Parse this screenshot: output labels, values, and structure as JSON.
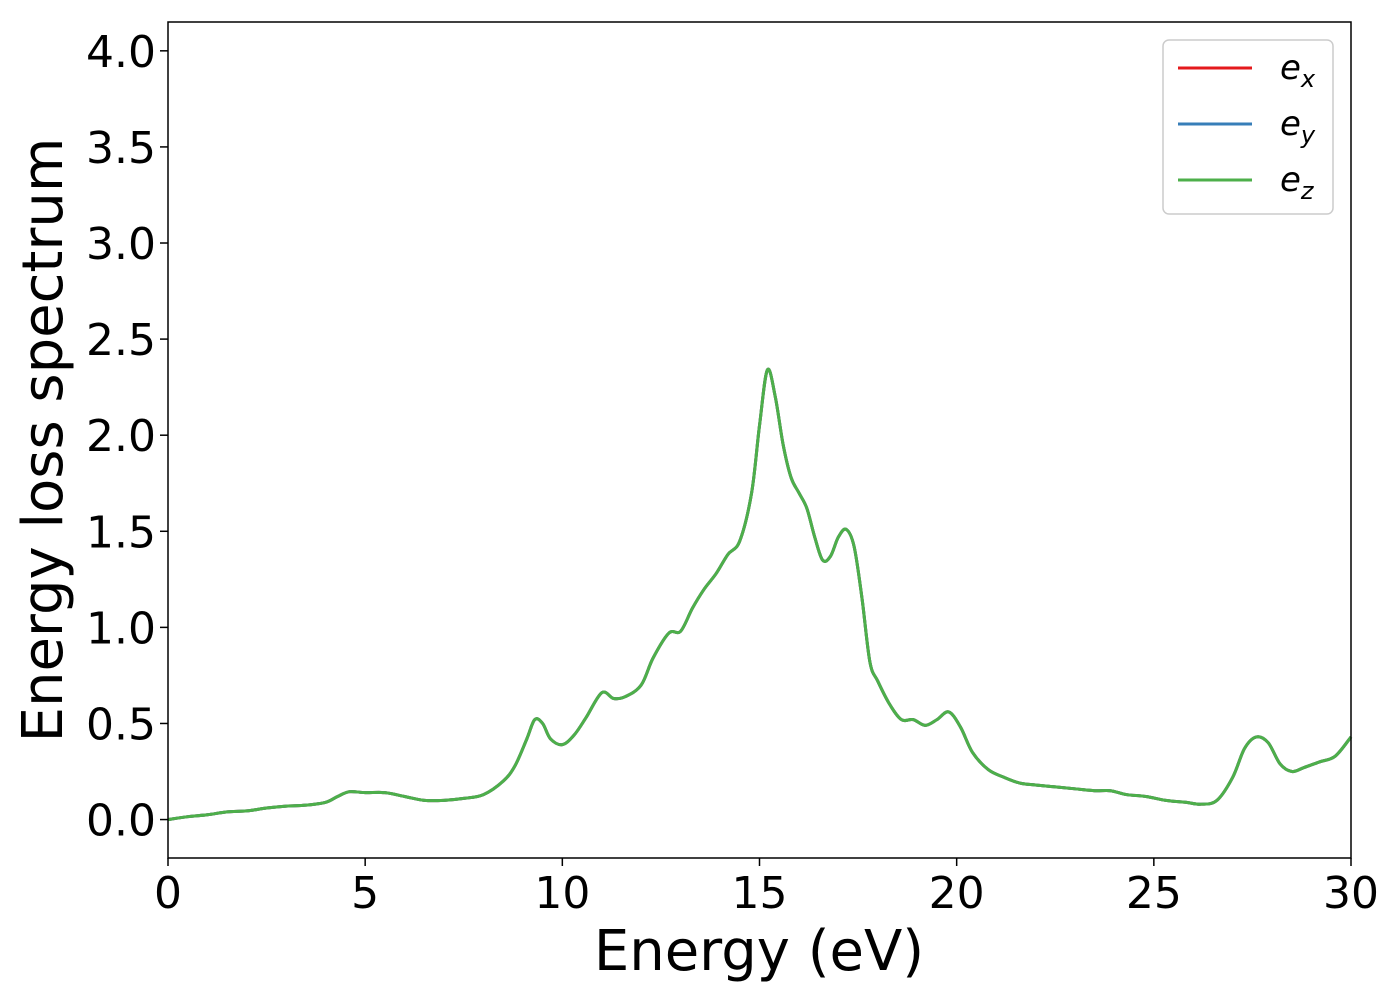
{
  "chart_data": {
    "type": "line",
    "title": "",
    "xlabel": "Energy (eV)",
    "ylabel": "Energy loss spectrum",
    "xlim": [
      0,
      30
    ],
    "ylim": [
      -0.2,
      4.15
    ],
    "xticks": [
      0,
      5,
      10,
      15,
      20,
      25,
      30
    ],
    "xtick_labels": [
      "0",
      "5",
      "10",
      "15",
      "20",
      "25",
      "30"
    ],
    "yticks": [
      0.0,
      0.5,
      1.0,
      1.5,
      2.0,
      2.5,
      3.0,
      3.5,
      4.0
    ],
    "ytick_labels": [
      "0.0",
      "0.5",
      "1.0",
      "1.5",
      "2.0",
      "2.5",
      "3.0",
      "3.5",
      "4.0"
    ],
    "grid": false,
    "legend_position": "top-right",
    "x": [
      0,
      0.5,
      1.0,
      1.5,
      2.0,
      2.5,
      3.0,
      3.5,
      4.0,
      4.3,
      4.6,
      5.0,
      5.5,
      6.0,
      6.5,
      7.0,
      7.5,
      8.0,
      8.5,
      8.8,
      9.1,
      9.3,
      9.5,
      9.7,
      10.0,
      10.3,
      10.6,
      11.0,
      11.3,
      11.6,
      12.0,
      12.3,
      12.7,
      13.0,
      13.3,
      13.6,
      13.9,
      14.2,
      14.5,
      14.8,
      15.0,
      15.2,
      15.4,
      15.6,
      15.8,
      16.0,
      16.2,
      16.4,
      16.6,
      16.8,
      17.0,
      17.2,
      17.4,
      17.6,
      17.8,
      18.0,
      18.3,
      18.6,
      18.9,
      19.2,
      19.5,
      19.8,
      20.1,
      20.4,
      20.8,
      21.2,
      21.6,
      22.0,
      22.5,
      23.0,
      23.5,
      23.9,
      24.3,
      24.8,
      25.3,
      25.8,
      26.2,
      26.6,
      27.0,
      27.3,
      27.6,
      27.9,
      28.2,
      28.5,
      28.8,
      29.2,
      29.6,
      30.0
    ],
    "series": [
      {
        "name": "e_x",
        "color": "#e41a1c",
        "values": [
          0.0,
          0.015,
          0.025,
          0.04,
          0.045,
          0.06,
          0.07,
          0.075,
          0.09,
          0.12,
          0.145,
          0.14,
          0.14,
          0.12,
          0.1,
          0.1,
          0.11,
          0.13,
          0.2,
          0.28,
          0.42,
          0.52,
          0.5,
          0.42,
          0.39,
          0.44,
          0.53,
          0.66,
          0.63,
          0.64,
          0.7,
          0.84,
          0.97,
          0.98,
          1.1,
          1.2,
          1.28,
          1.38,
          1.45,
          1.7,
          2.05,
          2.34,
          2.2,
          1.95,
          1.78,
          1.7,
          1.62,
          1.47,
          1.35,
          1.37,
          1.47,
          1.51,
          1.42,
          1.15,
          0.82,
          0.72,
          0.6,
          0.52,
          0.52,
          0.49,
          0.52,
          0.56,
          0.48,
          0.35,
          0.26,
          0.22,
          0.19,
          0.18,
          0.17,
          0.16,
          0.15,
          0.15,
          0.13,
          0.12,
          0.1,
          0.09,
          0.08,
          0.1,
          0.22,
          0.37,
          0.43,
          0.4,
          0.29,
          0.25,
          0.27,
          0.3,
          0.33,
          0.43
        ]
      },
      {
        "name": "e_y",
        "color": "#377eb8",
        "values": [
          0.0,
          0.015,
          0.025,
          0.04,
          0.045,
          0.06,
          0.07,
          0.075,
          0.09,
          0.12,
          0.145,
          0.14,
          0.14,
          0.12,
          0.1,
          0.1,
          0.11,
          0.13,
          0.2,
          0.28,
          0.42,
          0.52,
          0.5,
          0.42,
          0.39,
          0.44,
          0.53,
          0.66,
          0.63,
          0.64,
          0.7,
          0.84,
          0.97,
          0.98,
          1.1,
          1.2,
          1.28,
          1.38,
          1.45,
          1.7,
          2.05,
          2.34,
          2.2,
          1.95,
          1.78,
          1.7,
          1.62,
          1.47,
          1.35,
          1.37,
          1.47,
          1.51,
          1.42,
          1.15,
          0.82,
          0.72,
          0.6,
          0.52,
          0.52,
          0.49,
          0.52,
          0.56,
          0.48,
          0.35,
          0.26,
          0.22,
          0.19,
          0.18,
          0.17,
          0.16,
          0.15,
          0.15,
          0.13,
          0.12,
          0.1,
          0.09,
          0.08,
          0.1,
          0.22,
          0.37,
          0.43,
          0.4,
          0.29,
          0.25,
          0.27,
          0.3,
          0.33,
          0.43
        ]
      },
      {
        "name": "e_z",
        "color": "#4daf4a",
        "values": [
          0.0,
          0.015,
          0.025,
          0.04,
          0.045,
          0.06,
          0.07,
          0.075,
          0.09,
          0.12,
          0.145,
          0.14,
          0.14,
          0.12,
          0.1,
          0.1,
          0.11,
          0.13,
          0.2,
          0.28,
          0.42,
          0.52,
          0.5,
          0.42,
          0.39,
          0.44,
          0.53,
          0.66,
          0.63,
          0.64,
          0.7,
          0.84,
          0.97,
          0.98,
          1.1,
          1.2,
          1.28,
          1.38,
          1.45,
          1.7,
          2.05,
          2.34,
          2.2,
          1.95,
          1.78,
          1.7,
          1.62,
          1.47,
          1.35,
          1.37,
          1.47,
          1.51,
          1.42,
          1.15,
          0.82,
          0.72,
          0.6,
          0.52,
          0.52,
          0.49,
          0.52,
          0.56,
          0.48,
          0.35,
          0.26,
          0.22,
          0.19,
          0.18,
          0.17,
          0.16,
          0.15,
          0.15,
          0.13,
          0.12,
          0.1,
          0.09,
          0.08,
          0.1,
          0.22,
          0.37,
          0.43,
          0.4,
          0.29,
          0.25,
          0.27,
          0.3,
          0.33,
          0.43
        ]
      }
    ],
    "legend": [
      {
        "base": "e",
        "sub": "x",
        "color": "#e41a1c"
      },
      {
        "base": "e",
        "sub": "y",
        "color": "#377eb8"
      },
      {
        "base": "e",
        "sub": "z",
        "color": "#4daf4a"
      }
    ]
  }
}
